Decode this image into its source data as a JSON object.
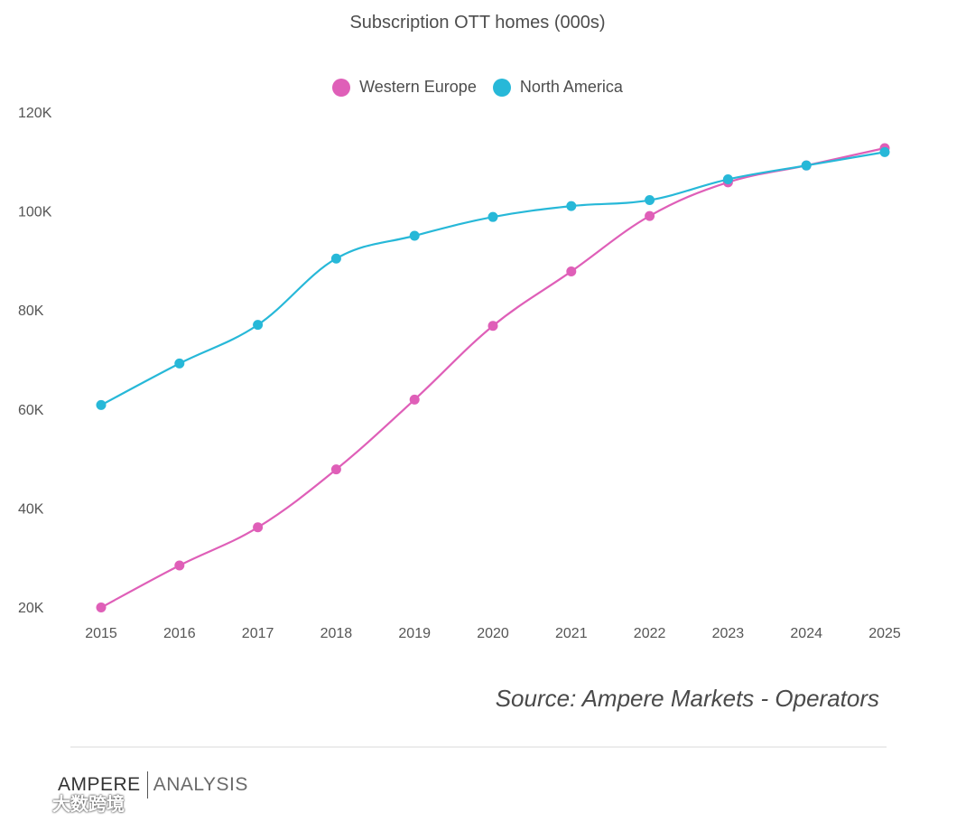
{
  "chart_data": {
    "type": "line",
    "title": "Subscription OTT homes (000s)",
    "xlabel": "",
    "ylabel": "",
    "categories": [
      "2015",
      "2016",
      "2017",
      "2018",
      "2019",
      "2020",
      "2021",
      "2022",
      "2023",
      "2024",
      "2025"
    ],
    "series": [
      {
        "name": "Western Europe",
        "color": "#df5fb8",
        "values": [
          19900,
          28400,
          36100,
          47800,
          61900,
          76800,
          87800,
          99000,
          105800,
          109200,
          112700
        ]
      },
      {
        "name": "North America",
        "color": "#27b8d8",
        "values": [
          60800,
          69200,
          77000,
          90400,
          95000,
          98800,
          101000,
          102200,
          106400,
          109200,
          111900
        ]
      }
    ],
    "ylim": [
      20000,
      120000
    ],
    "yticks": [
      20000,
      40000,
      60000,
      80000,
      100000,
      120000
    ],
    "ytick_labels": [
      "20K",
      "40K",
      "60K",
      "80K",
      "100K",
      "120K"
    ],
    "grid": false,
    "legend_position": "top-center"
  },
  "source": "Source: Ampere Markets - Operators",
  "brand": {
    "name": "AMPERE",
    "sub": "ANALYSIS"
  },
  "watermark": {
    "text": "大数跨境",
    "icon": "watermark-logo-icon"
  }
}
